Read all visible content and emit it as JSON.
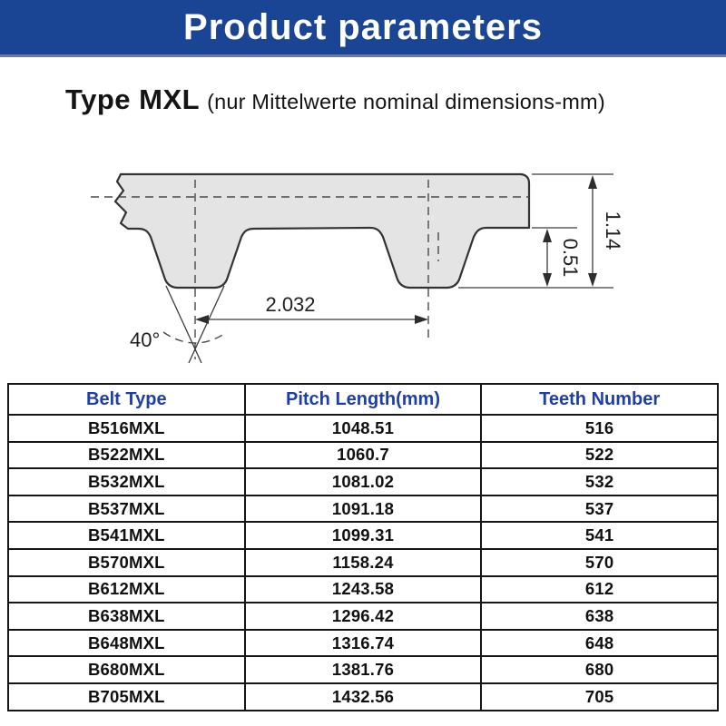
{
  "banner": {
    "title": "Product parameters",
    "bg_color": "#1a4494",
    "text_color": "#ffffff"
  },
  "heading": {
    "main": "Type MXL",
    "sub": "(nur Mittelwerte nominal dimensions-mm)"
  },
  "diagram": {
    "description": "MXL timing belt tooth profile cross-section with dimensions",
    "fill_color": "#e4e4e4",
    "labels": {
      "pitch": "2.032",
      "total_height": "1.14",
      "tooth_height": "0.51",
      "tooth_angle": "40°"
    }
  },
  "table": {
    "header_color": "#1e3eaa",
    "headers": [
      "Belt Type",
      "Pitch Length(mm)",
      "Teeth Number"
    ],
    "rows": [
      {
        "belt_type": "B516MXL",
        "pitch_length": "1048.51",
        "teeth": "516"
      },
      {
        "belt_type": "B522MXL",
        "pitch_length": "1060.7",
        "teeth": "522"
      },
      {
        "belt_type": "B532MXL",
        "pitch_length": "1081.02",
        "teeth": "532"
      },
      {
        "belt_type": "B537MXL",
        "pitch_length": "1091.18",
        "teeth": "537"
      },
      {
        "belt_type": "B541MXL",
        "pitch_length": "1099.31",
        "teeth": "541"
      },
      {
        "belt_type": "B570MXL",
        "pitch_length": "1158.24",
        "teeth": "570"
      },
      {
        "belt_type": "B612MXL",
        "pitch_length": "1243.58",
        "teeth": "612"
      },
      {
        "belt_type": "B638MXL",
        "pitch_length": "1296.42",
        "teeth": "638"
      },
      {
        "belt_type": "B648MXL",
        "pitch_length": "1316.74",
        "teeth": "648"
      },
      {
        "belt_type": "B680MXL",
        "pitch_length": "1381.76",
        "teeth": "680"
      },
      {
        "belt_type": "B705MXL",
        "pitch_length": "1432.56",
        "teeth": "705"
      }
    ]
  }
}
